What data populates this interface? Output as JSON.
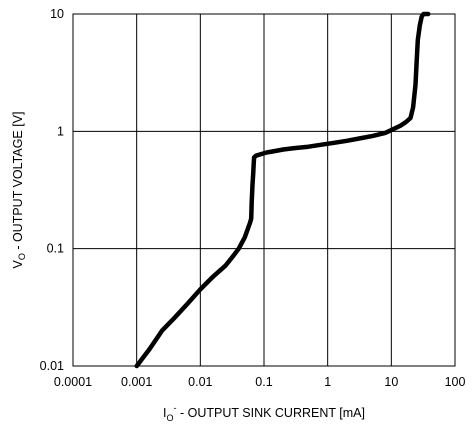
{
  "chart_data": {
    "type": "line",
    "x_scale": "log",
    "y_scale": "log",
    "xlim": [
      0.0001,
      100
    ],
    "ylim": [
      0.01,
      10
    ],
    "grid": true,
    "legend": "none",
    "x_ticks": [
      0.0001,
      0.001,
      0.01,
      0.1,
      1,
      10,
      100
    ],
    "x_tick_labels": [
      "0.0001",
      "0.001",
      "0.01",
      "0.1",
      "1",
      "10",
      "100"
    ],
    "y_ticks": [
      0.01,
      0.1,
      1,
      10
    ],
    "y_tick_labels": [
      "0.01",
      "0.1",
      "1",
      "10"
    ],
    "xlabel": {
      "main": "I",
      "sub": "O",
      "sup": "-",
      "rest": " - OUTPUT SINK CURRENT [mA]"
    },
    "ylabel": {
      "main": "V",
      "sub": "O",
      "rest": " - OUTPUT VOLTAGE [V]"
    },
    "line_color": "#000000",
    "series": [
      {
        "x": [
          0.001,
          0.0016,
          0.0025,
          0.004,
          0.0063,
          0.01,
          0.016,
          0.025,
          0.032,
          0.04,
          0.05,
          0.055,
          0.06,
          0.063,
          0.064,
          0.066,
          0.068,
          0.069,
          0.07,
          0.075,
          0.09,
          0.11,
          0.15,
          0.2,
          0.3,
          0.5,
          0.8,
          1.3,
          2,
          3.2,
          5,
          8,
          11,
          14,
          17,
          20,
          22,
          24,
          25,
          26,
          28,
          30,
          32,
          35,
          38
        ],
        "y": [
          0.01,
          0.014,
          0.02,
          0.026,
          0.034,
          0.045,
          0.058,
          0.072,
          0.085,
          0.1,
          0.125,
          0.145,
          0.165,
          0.18,
          0.25,
          0.35,
          0.45,
          0.53,
          0.6,
          0.62,
          0.64,
          0.66,
          0.68,
          0.7,
          0.72,
          0.74,
          0.77,
          0.8,
          0.83,
          0.87,
          0.91,
          0.97,
          1.05,
          1.12,
          1.2,
          1.3,
          1.6,
          2.5,
          4,
          6,
          8,
          9.5,
          10,
          10,
          10
        ]
      }
    ]
  }
}
